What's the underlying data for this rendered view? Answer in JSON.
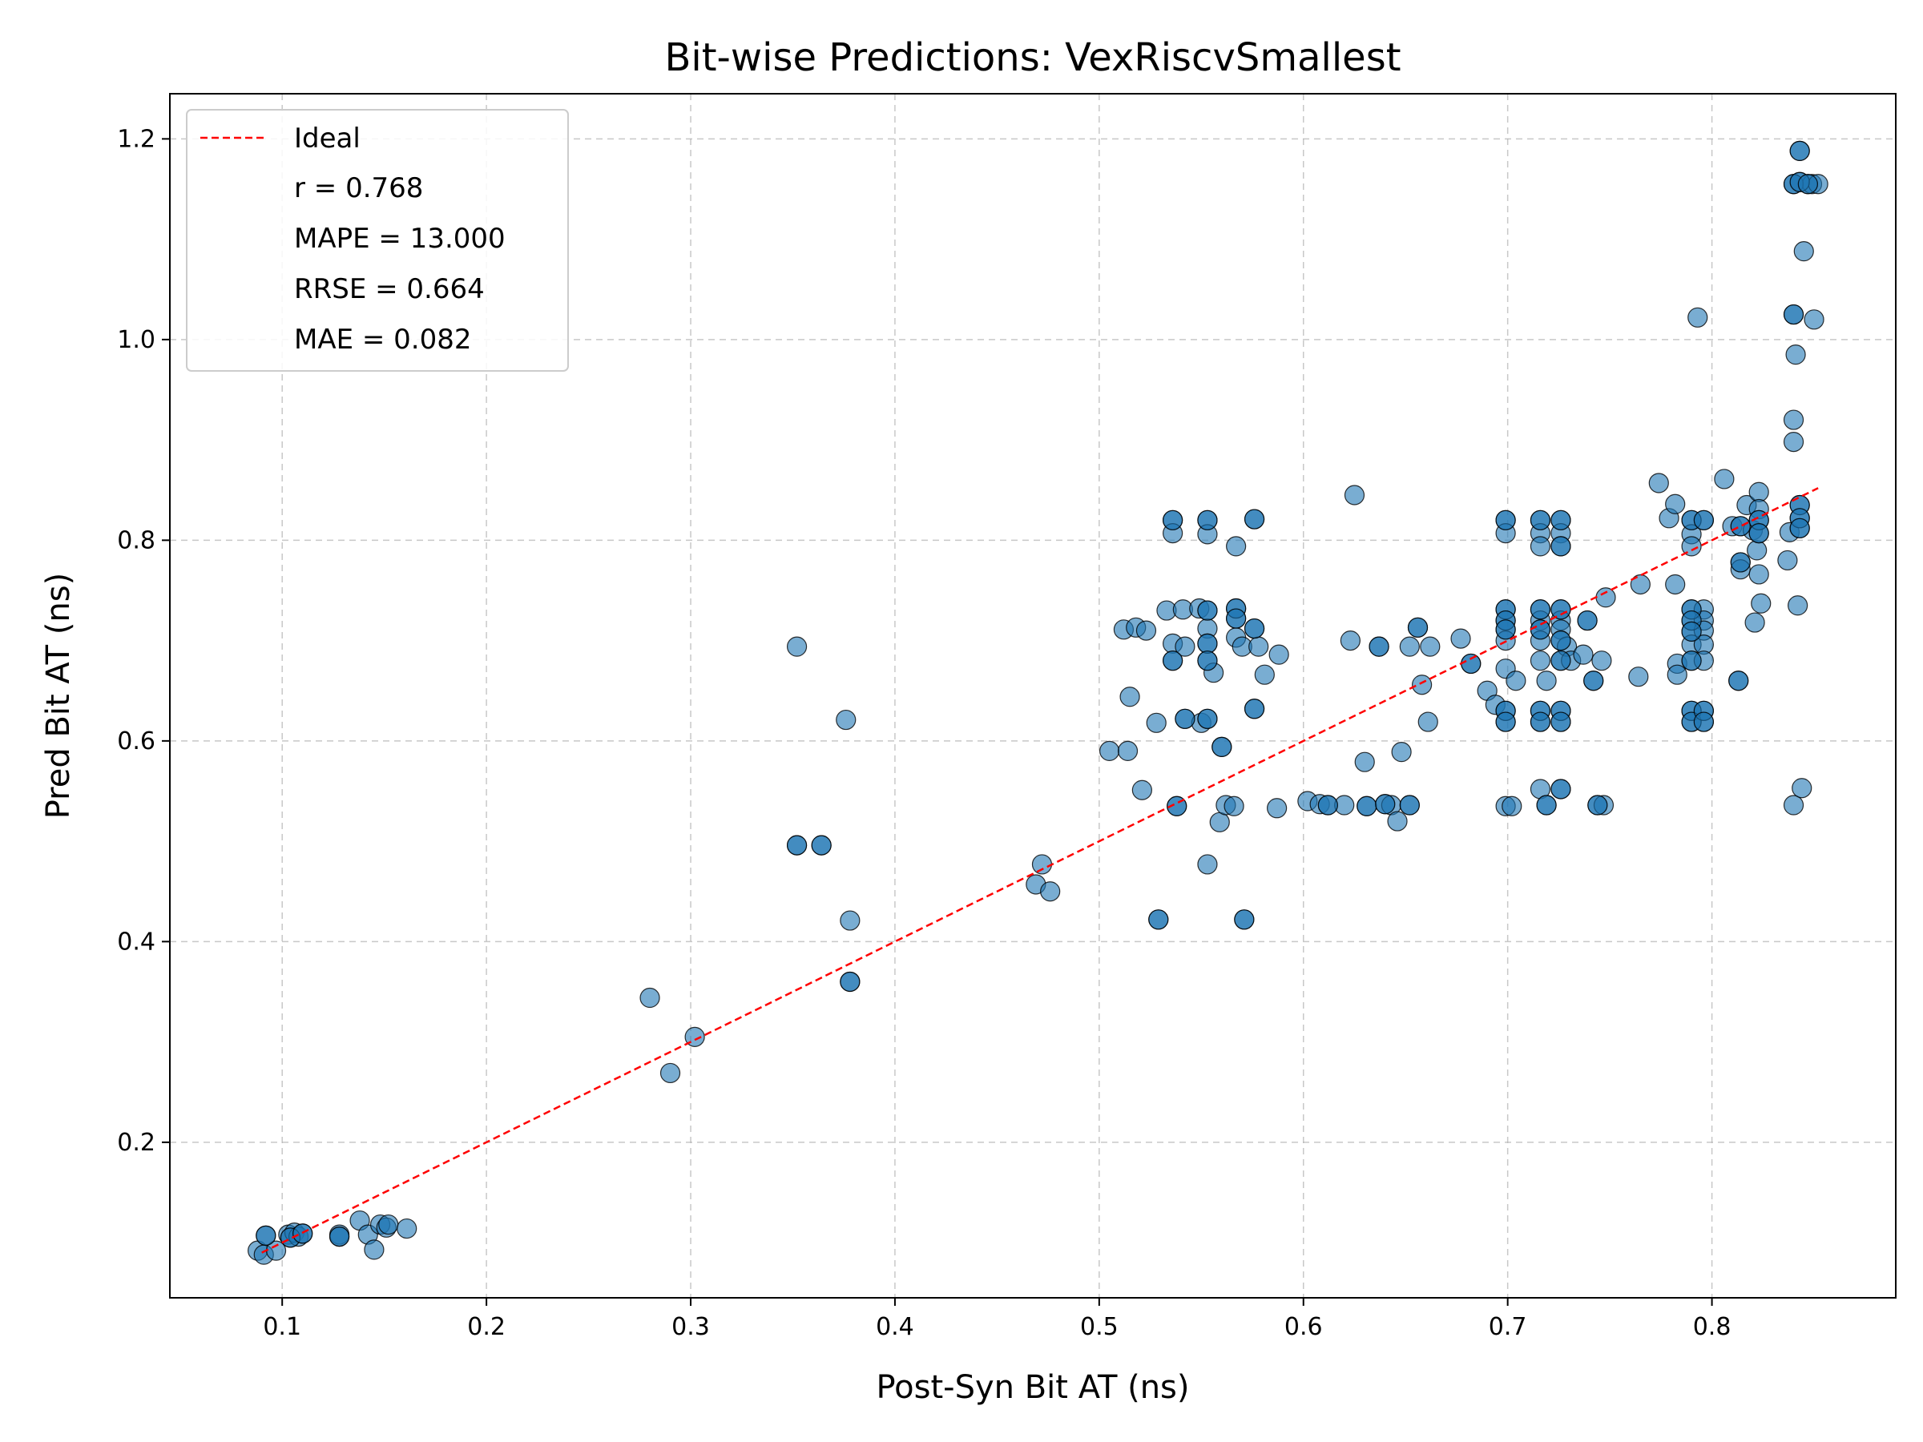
{
  "chart_data": {
    "type": "scatter",
    "title": "Bit-wise Predictions: VexRiscvSmallest",
    "xlabel": "Post-Syn Bit AT (ns)",
    "ylabel": "Pred Bit AT (ns)",
    "xlim": [
      0.045,
      0.89
    ],
    "ylim": [
      0.045,
      1.245
    ],
    "xticks": [
      0.1,
      0.2,
      0.3,
      0.4,
      0.5,
      0.6,
      0.7,
      0.8
    ],
    "yticks": [
      0.2,
      0.4,
      0.6,
      0.8,
      1.0,
      1.2
    ],
    "xtick_labels": [
      "0.1",
      "0.2",
      "0.3",
      "0.4",
      "0.5",
      "0.6",
      "0.7",
      "0.8"
    ],
    "ytick_labels": [
      "0.2",
      "0.4",
      "0.6",
      "0.8",
      "1.0",
      "1.2"
    ],
    "grid": true,
    "legend_position": "top-left",
    "legend": {
      "ideal_label": "Ideal",
      "stats": [
        "r = 0.768",
        "MAPE = 13.000",
        "RRSE = 0.664",
        "MAE = 0.082"
      ]
    },
    "ideal_line": {
      "x": [
        0.09,
        0.852
      ],
      "y": [
        0.09,
        0.852
      ],
      "color": "#ff0000",
      "style": "dashed"
    },
    "point_color": "#1f77b4",
    "points": [
      [
        0.088,
        0.092
      ],
      [
        0.091,
        0.088
      ],
      [
        0.092,
        0.107
      ],
      [
        0.097,
        0.092
      ],
      [
        0.103,
        0.108
      ],
      [
        0.104,
        0.105
      ],
      [
        0.106,
        0.11
      ],
      [
        0.108,
        0.106
      ],
      [
        0.11,
        0.109
      ],
      [
        0.128,
        0.108
      ],
      [
        0.128,
        0.106
      ],
      [
        0.138,
        0.122
      ],
      [
        0.142,
        0.108
      ],
      [
        0.145,
        0.093
      ],
      [
        0.148,
        0.118
      ],
      [
        0.151,
        0.115
      ],
      [
        0.152,
        0.118
      ],
      [
        0.161,
        0.114
      ],
      [
        0.28,
        0.344
      ],
      [
        0.29,
        0.269
      ],
      [
        0.302,
        0.305
      ],
      [
        0.352,
        0.694
      ],
      [
        0.352,
        0.496
      ],
      [
        0.364,
        0.496
      ],
      [
        0.376,
        0.621
      ],
      [
        0.378,
        0.421
      ],
      [
        0.378,
        0.36
      ],
      [
        0.469,
        0.457
      ],
      [
        0.472,
        0.477
      ],
      [
        0.476,
        0.45
      ],
      [
        0.505,
        0.59
      ],
      [
        0.512,
        0.711
      ],
      [
        0.514,
        0.59
      ],
      [
        0.515,
        0.644
      ],
      [
        0.518,
        0.713
      ],
      [
        0.521,
        0.551
      ],
      [
        0.523,
        0.71
      ],
      [
        0.528,
        0.618
      ],
      [
        0.529,
        0.422
      ],
      [
        0.533,
        0.73
      ],
      [
        0.536,
        0.82
      ],
      [
        0.536,
        0.807
      ],
      [
        0.536,
        0.697
      ],
      [
        0.536,
        0.68
      ],
      [
        0.538,
        0.535
      ],
      [
        0.541,
        0.731
      ],
      [
        0.542,
        0.694
      ],
      [
        0.542,
        0.622
      ],
      [
        0.549,
        0.732
      ],
      [
        0.55,
        0.618
      ],
      [
        0.553,
        0.82
      ],
      [
        0.553,
        0.806
      ],
      [
        0.553,
        0.73
      ],
      [
        0.553,
        0.712
      ],
      [
        0.553,
        0.697
      ],
      [
        0.553,
        0.68
      ],
      [
        0.553,
        0.622
      ],
      [
        0.553,
        0.477
      ],
      [
        0.556,
        0.668
      ],
      [
        0.559,
        0.519
      ],
      [
        0.56,
        0.594
      ],
      [
        0.562,
        0.536
      ],
      [
        0.566,
        0.535
      ],
      [
        0.567,
        0.794
      ],
      [
        0.567,
        0.732
      ],
      [
        0.567,
        0.722
      ],
      [
        0.567,
        0.703
      ],
      [
        0.57,
        0.694
      ],
      [
        0.571,
        0.422
      ],
      [
        0.576,
        0.821
      ],
      [
        0.576,
        0.712
      ],
      [
        0.576,
        0.632
      ],
      [
        0.578,
        0.694
      ],
      [
        0.581,
        0.666
      ],
      [
        0.587,
        0.533
      ],
      [
        0.588,
        0.686
      ],
      [
        0.602,
        0.54
      ],
      [
        0.608,
        0.537
      ],
      [
        0.612,
        0.536
      ],
      [
        0.62,
        0.536
      ],
      [
        0.623,
        0.7
      ],
      [
        0.625,
        0.845
      ],
      [
        0.63,
        0.579
      ],
      [
        0.631,
        0.535
      ],
      [
        0.637,
        0.694
      ],
      [
        0.64,
        0.537
      ],
      [
        0.643,
        0.536
      ],
      [
        0.646,
        0.52
      ],
      [
        0.648,
        0.589
      ],
      [
        0.652,
        0.694
      ],
      [
        0.652,
        0.536
      ],
      [
        0.656,
        0.713
      ],
      [
        0.658,
        0.656
      ],
      [
        0.661,
        0.619
      ],
      [
        0.662,
        0.694
      ],
      [
        0.677,
        0.702
      ],
      [
        0.682,
        0.677
      ],
      [
        0.69,
        0.65
      ],
      [
        0.694,
        0.636
      ],
      [
        0.699,
        0.82
      ],
      [
        0.699,
        0.807
      ],
      [
        0.699,
        0.731
      ],
      [
        0.699,
        0.72
      ],
      [
        0.699,
        0.711
      ],
      [
        0.699,
        0.7
      ],
      [
        0.699,
        0.672
      ],
      [
        0.699,
        0.63
      ],
      [
        0.699,
        0.619
      ],
      [
        0.699,
        0.535
      ],
      [
        0.702,
        0.535
      ],
      [
        0.704,
        0.66
      ],
      [
        0.716,
        0.82
      ],
      [
        0.716,
        0.807
      ],
      [
        0.716,
        0.794
      ],
      [
        0.716,
        0.731
      ],
      [
        0.716,
        0.72
      ],
      [
        0.716,
        0.711
      ],
      [
        0.716,
        0.7
      ],
      [
        0.716,
        0.68
      ],
      [
        0.716,
        0.63
      ],
      [
        0.716,
        0.619
      ],
      [
        0.716,
        0.552
      ],
      [
        0.719,
        0.66
      ],
      [
        0.719,
        0.536
      ],
      [
        0.726,
        0.82
      ],
      [
        0.726,
        0.807
      ],
      [
        0.726,
        0.794
      ],
      [
        0.726,
        0.731
      ],
      [
        0.726,
        0.72
      ],
      [
        0.726,
        0.711
      ],
      [
        0.726,
        0.7
      ],
      [
        0.726,
        0.68
      ],
      [
        0.726,
        0.63
      ],
      [
        0.726,
        0.619
      ],
      [
        0.726,
        0.552
      ],
      [
        0.729,
        0.694
      ],
      [
        0.731,
        0.68
      ],
      [
        0.737,
        0.686
      ],
      [
        0.739,
        0.72
      ],
      [
        0.742,
        0.66
      ],
      [
        0.744,
        0.536
      ],
      [
        0.746,
        0.68
      ],
      [
        0.747,
        0.536
      ],
      [
        0.748,
        0.743
      ],
      [
        0.764,
        0.664
      ],
      [
        0.765,
        0.756
      ],
      [
        0.774,
        0.857
      ],
      [
        0.779,
        0.822
      ],
      [
        0.782,
        0.836
      ],
      [
        0.782,
        0.756
      ],
      [
        0.783,
        0.677
      ],
      [
        0.783,
        0.666
      ],
      [
        0.79,
        0.82
      ],
      [
        0.79,
        0.806
      ],
      [
        0.79,
        0.794
      ],
      [
        0.79,
        0.731
      ],
      [
        0.79,
        0.72
      ],
      [
        0.79,
        0.709
      ],
      [
        0.79,
        0.696
      ],
      [
        0.79,
        0.68
      ],
      [
        0.79,
        0.63
      ],
      [
        0.79,
        0.619
      ],
      [
        0.793,
        1.022
      ],
      [
        0.796,
        0.82
      ],
      [
        0.796,
        0.731
      ],
      [
        0.796,
        0.72
      ],
      [
        0.796,
        0.71
      ],
      [
        0.796,
        0.696
      ],
      [
        0.796,
        0.68
      ],
      [
        0.796,
        0.63
      ],
      [
        0.796,
        0.619
      ],
      [
        0.806,
        0.861
      ],
      [
        0.81,
        0.814
      ],
      [
        0.813,
        0.66
      ],
      [
        0.814,
        0.814
      ],
      [
        0.814,
        0.778
      ],
      [
        0.814,
        0.771
      ],
      [
        0.817,
        0.835
      ],
      [
        0.82,
        0.81
      ],
      [
        0.821,
        0.718
      ],
      [
        0.822,
        0.79
      ],
      [
        0.823,
        0.848
      ],
      [
        0.823,
        0.831
      ],
      [
        0.823,
        0.82
      ],
      [
        0.823,
        0.807
      ],
      [
        0.823,
        0.766
      ],
      [
        0.824,
        0.737
      ],
      [
        0.837,
        0.78
      ],
      [
        0.838,
        0.808
      ],
      [
        0.84,
        1.155
      ],
      [
        0.84,
        1.025
      ],
      [
        0.84,
        0.92
      ],
      [
        0.84,
        0.898
      ],
      [
        0.84,
        0.536
      ],
      [
        0.841,
        0.985
      ],
      [
        0.842,
        0.735
      ],
      [
        0.843,
        1.188
      ],
      [
        0.843,
        1.157
      ],
      [
        0.843,
        0.835
      ],
      [
        0.843,
        0.822
      ],
      [
        0.843,
        0.812
      ],
      [
        0.844,
        0.553
      ],
      [
        0.845,
        1.088
      ],
      [
        0.847,
        1.155
      ],
      [
        0.849,
        1.155
      ],
      [
        0.85,
        1.02
      ],
      [
        0.852,
        1.155
      ]
    ],
    "dark_points": [
      [
        0.092,
        0.107
      ],
      [
        0.104,
        0.105
      ],
      [
        0.11,
        0.109
      ],
      [
        0.128,
        0.106
      ],
      [
        0.352,
        0.496
      ],
      [
        0.364,
        0.496
      ],
      [
        0.378,
        0.36
      ],
      [
        0.529,
        0.422
      ],
      [
        0.536,
        0.82
      ],
      [
        0.536,
        0.68
      ],
      [
        0.538,
        0.535
      ],
      [
        0.542,
        0.622
      ],
      [
        0.553,
        0.82
      ],
      [
        0.553,
        0.73
      ],
      [
        0.553,
        0.697
      ],
      [
        0.553,
        0.68
      ],
      [
        0.553,
        0.622
      ],
      [
        0.56,
        0.594
      ],
      [
        0.567,
        0.732
      ],
      [
        0.567,
        0.722
      ],
      [
        0.571,
        0.422
      ],
      [
        0.576,
        0.821
      ],
      [
        0.576,
        0.712
      ],
      [
        0.576,
        0.632
      ],
      [
        0.612,
        0.536
      ],
      [
        0.631,
        0.535
      ],
      [
        0.64,
        0.537
      ],
      [
        0.652,
        0.536
      ],
      [
        0.656,
        0.713
      ],
      [
        0.637,
        0.694
      ],
      [
        0.682,
        0.677
      ],
      [
        0.699,
        0.82
      ],
      [
        0.699,
        0.731
      ],
      [
        0.699,
        0.72
      ],
      [
        0.699,
        0.711
      ],
      [
        0.699,
        0.63
      ],
      [
        0.699,
        0.619
      ],
      [
        0.716,
        0.82
      ],
      [
        0.716,
        0.731
      ],
      [
        0.716,
        0.711
      ],
      [
        0.716,
        0.63
      ],
      [
        0.716,
        0.619
      ],
      [
        0.719,
        0.536
      ],
      [
        0.726,
        0.82
      ],
      [
        0.726,
        0.794
      ],
      [
        0.726,
        0.731
      ],
      [
        0.726,
        0.7
      ],
      [
        0.726,
        0.68
      ],
      [
        0.726,
        0.63
      ],
      [
        0.726,
        0.619
      ],
      [
        0.726,
        0.552
      ],
      [
        0.739,
        0.72
      ],
      [
        0.744,
        0.536
      ],
      [
        0.742,
        0.66
      ],
      [
        0.79,
        0.82
      ],
      [
        0.79,
        0.731
      ],
      [
        0.79,
        0.72
      ],
      [
        0.79,
        0.709
      ],
      [
        0.79,
        0.68
      ],
      [
        0.79,
        0.63
      ],
      [
        0.79,
        0.619
      ],
      [
        0.796,
        0.82
      ],
      [
        0.796,
        0.63
      ],
      [
        0.796,
        0.619
      ],
      [
        0.813,
        0.66
      ],
      [
        0.814,
        0.814
      ],
      [
        0.814,
        0.778
      ],
      [
        0.823,
        0.82
      ],
      [
        0.823,
        0.807
      ],
      [
        0.84,
        1.155
      ],
      [
        0.84,
        1.025
      ],
      [
        0.843,
        1.188
      ],
      [
        0.843,
        1.157
      ],
      [
        0.843,
        0.835
      ],
      [
        0.843,
        0.822
      ],
      [
        0.843,
        0.812
      ],
      [
        0.847,
        1.155
      ]
    ]
  }
}
